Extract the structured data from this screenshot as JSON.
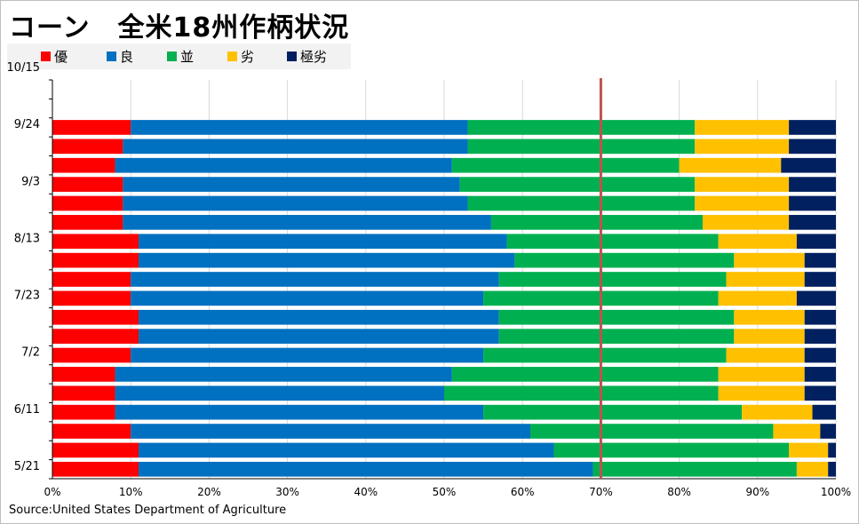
{
  "title": "コーン　全米18州作柄状況",
  "source": "Source:United States Department of Agriculture",
  "colors": {
    "excellent": "#ff0000",
    "good": "#0070c0",
    "fair": "#00b050",
    "poor": "#ffc000",
    "very_poor": "#002060",
    "reference_line": "#c0504d",
    "grid": "#d9d9d9"
  },
  "chart_data": {
    "type": "bar",
    "orientation": "horizontal",
    "stacked": "percent",
    "legend_placement": "top-left",
    "xlim": [
      0,
      100
    ],
    "x_tick_labels": [
      "0%",
      "10%",
      "20%",
      "30%",
      "40%",
      "50%",
      "60%",
      "70%",
      "80%",
      "90%",
      "100%"
    ],
    "y_tick_labels": [
      "10/15",
      "9/24",
      "9/3",
      "8/13",
      "7/23",
      "7/2",
      "6/11",
      "5/21"
    ],
    "reference_line_x": 70,
    "series": [
      {
        "name": "優",
        "key": "excellent"
      },
      {
        "name": "良",
        "key": "good"
      },
      {
        "name": "並",
        "key": "fair"
      },
      {
        "name": "劣",
        "key": "poor"
      },
      {
        "name": "極劣",
        "key": "very_poor"
      }
    ],
    "rows": [
      {
        "values": null
      },
      {
        "values": null
      },
      {
        "values": [
          10,
          43,
          29,
          12,
          6
        ]
      },
      {
        "values": [
          9,
          44,
          29,
          12,
          6
        ]
      },
      {
        "values": [
          8,
          43,
          29,
          13,
          7
        ]
      },
      {
        "values": [
          9,
          43,
          30,
          12,
          6
        ]
      },
      {
        "values": [
          9,
          44,
          29,
          12,
          6
        ]
      },
      {
        "values": [
          9,
          47,
          27,
          11,
          6
        ]
      },
      {
        "values": [
          11,
          47,
          27,
          10,
          5
        ]
      },
      {
        "values": [
          11,
          48,
          28,
          9,
          4
        ]
      },
      {
        "values": [
          10,
          47,
          29,
          10,
          4
        ]
      },
      {
        "values": [
          10,
          45,
          30,
          10,
          5
        ]
      },
      {
        "values": [
          11,
          46,
          30,
          9,
          4
        ]
      },
      {
        "values": [
          11,
          46,
          30,
          9,
          4
        ]
      },
      {
        "values": [
          10,
          45,
          31,
          10,
          4
        ]
      },
      {
        "values": [
          8,
          43,
          34,
          11,
          4
        ]
      },
      {
        "values": [
          8,
          42,
          35,
          11,
          4
        ]
      },
      {
        "values": [
          8,
          47,
          33,
          9,
          3
        ]
      },
      {
        "values": [
          10,
          51,
          31,
          6,
          2
        ]
      },
      {
        "values": [
          11,
          53,
          30,
          5,
          1
        ]
      },
      {
        "values": [
          11,
          58,
          26,
          4,
          1
        ]
      }
    ]
  }
}
